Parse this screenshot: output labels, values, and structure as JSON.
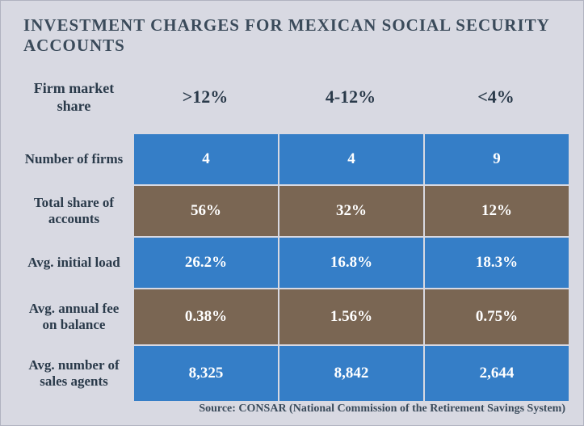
{
  "title": "INVESTMENT CHARGES FOR MEXICAN SOCIAL SECURITY ACCOUNTS",
  "corner_label": "Firm market share",
  "columns": [
    ">12%",
    "4-12%",
    "<4%"
  ],
  "rows": [
    {
      "label": "Number of firms",
      "values": [
        "4",
        "4",
        "9"
      ],
      "color": "blue",
      "h": "h64"
    },
    {
      "label": "Total share of accounts",
      "values": [
        "56%",
        "32%",
        "12%"
      ],
      "color": "brown",
      "h": "h64"
    },
    {
      "label": "Avg. initial load",
      "values": [
        "26.2%",
        "16.8%",
        "18.3%"
      ],
      "color": "blue",
      "h": "h64"
    },
    {
      "label": "Avg. annual fee on balance",
      "values": [
        "0.38%",
        "1.56%",
        "0.75%"
      ],
      "color": "brown",
      "h": "h70"
    },
    {
      "label": "Avg. number of sales agents",
      "values": [
        "8,325",
        "8,842",
        "2,644"
      ],
      "color": "blue",
      "h": "h70"
    }
  ],
  "source": "Source: CONSAR (National Commission of the Retirement Savings System)",
  "colors": {
    "background": "#d8d9e2",
    "blue": "#357ec7",
    "brown": "#7a6653",
    "text_dark": "#2a3a4a",
    "text_light": "#ffffff"
  }
}
